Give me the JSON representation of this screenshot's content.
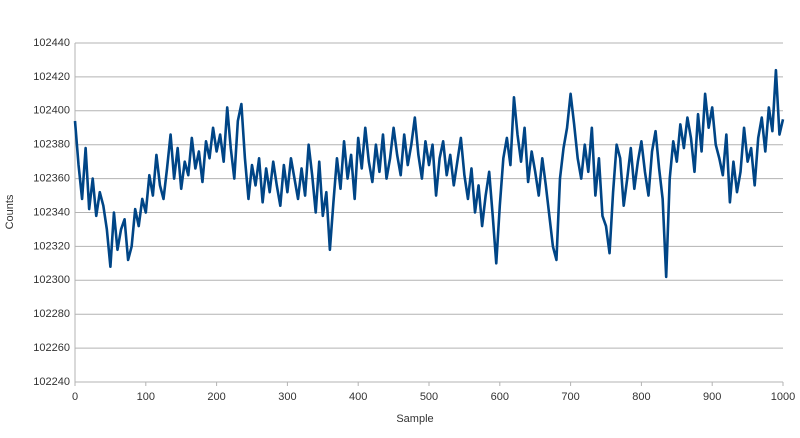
{
  "chart_data": {
    "type": "line",
    "x_label": "Sample",
    "y_label": "Counts",
    "x": [
      0,
      5,
      10,
      15,
      20,
      25,
      30,
      35,
      40,
      45,
      50,
      55,
      60,
      65,
      70,
      75,
      80,
      85,
      90,
      95,
      100,
      105,
      110,
      115,
      120,
      125,
      130,
      135,
      140,
      145,
      150,
      155,
      160,
      165,
      170,
      175,
      180,
      185,
      190,
      195,
      200,
      205,
      210,
      215,
      220,
      225,
      230,
      235,
      240,
      245,
      250,
      255,
      260,
      265,
      270,
      275,
      280,
      285,
      290,
      295,
      300,
      305,
      310,
      315,
      320,
      325,
      330,
      335,
      340,
      345,
      350,
      355,
      360,
      365,
      370,
      375,
      380,
      385,
      390,
      395,
      400,
      405,
      410,
      415,
      420,
      425,
      430,
      435,
      440,
      445,
      450,
      455,
      460,
      465,
      470,
      475,
      480,
      485,
      490,
      495,
      500,
      505,
      510,
      515,
      520,
      525,
      530,
      535,
      540,
      545,
      550,
      555,
      560,
      565,
      570,
      575,
      580,
      585,
      590,
      595,
      600,
      605,
      610,
      615,
      620,
      625,
      630,
      635,
      640,
      645,
      650,
      655,
      660,
      665,
      670,
      675,
      680,
      685,
      690,
      695,
      700,
      705,
      710,
      715,
      720,
      725,
      730,
      735,
      740,
      745,
      750,
      755,
      760,
      765,
      770,
      775,
      780,
      785,
      790,
      795,
      800,
      805,
      810,
      815,
      820,
      825,
      830,
      835,
      840,
      845,
      850,
      855,
      860,
      865,
      870,
      875,
      880,
      885,
      890,
      895,
      900,
      905,
      910,
      915,
      920,
      925,
      930,
      935,
      940,
      945,
      950,
      955,
      960,
      965,
      970,
      975,
      980,
      985,
      990,
      995,
      1000
    ],
    "values": [
      102394,
      102368,
      102348,
      102378,
      102342,
      102360,
      102338,
      102352,
      102344,
      102330,
      102308,
      102340,
      102318,
      102330,
      102336,
      102312,
      102320,
      102342,
      102332,
      102348,
      102340,
      102362,
      102350,
      102374,
      102356,
      102348,
      102366,
      102386,
      102360,
      102378,
      102354,
      102370,
      102362,
      102384,
      102366,
      102376,
      102358,
      102382,
      102372,
      102390,
      102376,
      102386,
      102370,
      102402,
      102378,
      102360,
      102394,
      102404,
      102372,
      102348,
      102368,
      102356,
      102372,
      102346,
      102366,
      102352,
      102370,
      102356,
      102344,
      102368,
      102352,
      102372,
      102360,
      102348,
      102366,
      102350,
      102380,
      102362,
      102340,
      102370,
      102338,
      102352,
      102318,
      102346,
      102372,
      102354,
      102382,
      102360,
      102374,
      102348,
      102384,
      102366,
      102390,
      102370,
      102358,
      102380,
      102364,
      102386,
      102360,
      102372,
      102390,
      102374,
      102362,
      102386,
      102368,
      102380,
      102396,
      102374,
      102360,
      102382,
      102368,
      102380,
      102350,
      102372,
      102382,
      102362,
      102374,
      102356,
      102370,
      102384,
      102362,
      102348,
      102366,
      102340,
      102356,
      102332,
      102350,
      102364,
      102338,
      102310,
      102344,
      102372,
      102384,
      102368,
      102408,
      102386,
      102370,
      102390,
      102358,
      102376,
      102364,
      102350,
      102372,
      102356,
      102338,
      102320,
      102312,
      102360,
      102378,
      102390,
      102410,
      102392,
      102372,
      102360,
      102380,
      102364,
      102390,
      102350,
      102372,
      102338,
      102332,
      102316,
      102352,
      102380,
      102372,
      102344,
      102360,
      102378,
      102354,
      102370,
      102382,
      102364,
      102350,
      102376,
      102388,
      102366,
      102348,
      102302,
      102360,
      102382,
      102370,
      102392,
      102378,
      102396,
      102384,
      102364,
      102398,
      102376,
      102410,
      102390,
      102402,
      102380,
      102372,
      102362,
      102386,
      102346,
      102370,
      102352,
      102364,
      102390,
      102370,
      102378,
      102356,
      102384,
      102396,
      102376,
      102402,
      102388,
      102424,
      102386,
      102395
    ],
    "color": "#004586",
    "xlim": [
      0,
      1000
    ],
    "xticks": [
      0,
      100,
      200,
      300,
      400,
      500,
      600,
      700,
      800,
      900,
      1000
    ],
    "ylim": [
      102240,
      102440
    ],
    "yticks": [
      102240,
      102260,
      102280,
      102300,
      102320,
      102340,
      102360,
      102380,
      102400,
      102420,
      102440
    ],
    "grid": true
  }
}
